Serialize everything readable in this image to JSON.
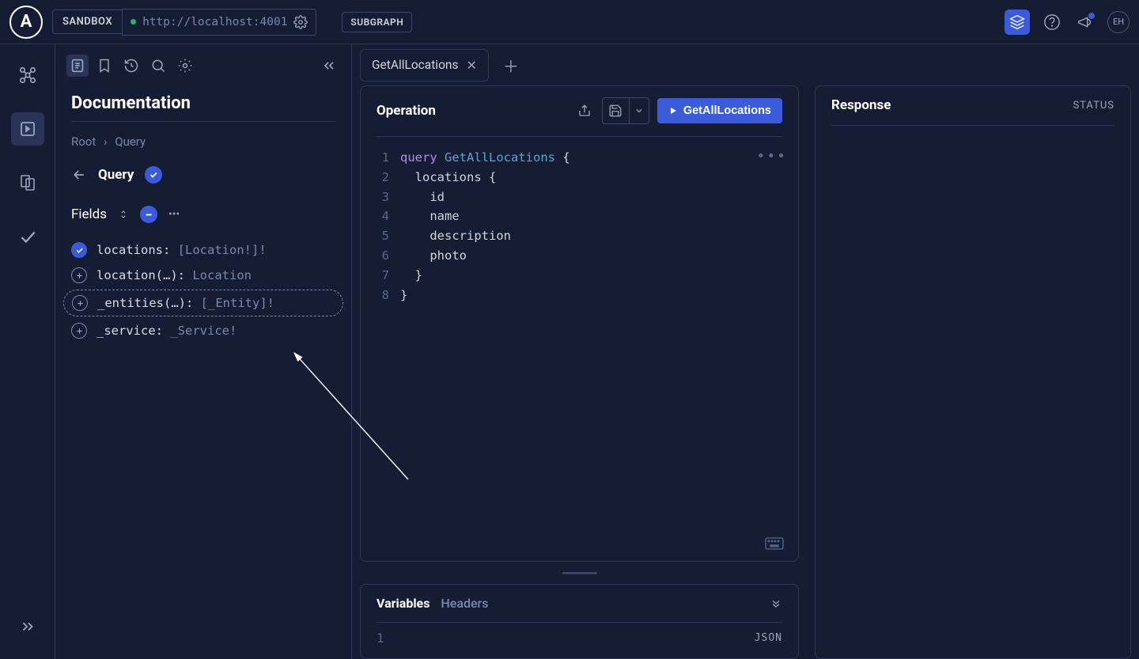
{
  "colors": {
    "bg": "#141d34",
    "panel_border": "#2d3956",
    "accent": "#3b5bdb",
    "text_muted": "#7a88ab",
    "text": "#d1d5db",
    "status_ok": "#22b573",
    "code_keyword": "#b889e6",
    "code_func": "#5ea3d0"
  },
  "topbar": {
    "logo_letter": "A",
    "sandbox_label": "SANDBOX",
    "url": "http://localhost:4001",
    "subgraph_badge": "SUBGRAPH",
    "avatar_initials": "EH"
  },
  "sidebar": {
    "title": "Documentation",
    "breadcrumb_root": "Root",
    "breadcrumb_sep": "›",
    "breadcrumb_current": "Query",
    "type_name": "Query",
    "fields_label": "Fields",
    "fields": [
      {
        "name": "locations",
        "args": "",
        "sep": ": ",
        "type": "[Location!]!",
        "checked": true,
        "highlight": false
      },
      {
        "name": "location",
        "args": "(…)",
        "sep": ": ",
        "type": "Location",
        "checked": false,
        "highlight": false
      },
      {
        "name": "_entities",
        "args": "(…)",
        "sep": ": ",
        "type": "[_Entity]!",
        "checked": false,
        "highlight": true
      },
      {
        "name": "_service",
        "args": "",
        "sep": ": ",
        "type": "_Service!",
        "checked": false,
        "highlight": false
      }
    ]
  },
  "tabs": {
    "active_label": "GetAllLocations"
  },
  "operation": {
    "title": "Operation",
    "run_label": "GetAllLocations",
    "code_lines": [
      {
        "n": "1",
        "kw": "query ",
        "fn": "GetAllLocations",
        "rest": " {"
      },
      {
        "n": "2",
        "kw": "",
        "fn": "",
        "rest": "  locations {"
      },
      {
        "n": "3",
        "kw": "",
        "fn": "",
        "rest": "    id"
      },
      {
        "n": "4",
        "kw": "",
        "fn": "",
        "rest": "    name"
      },
      {
        "n": "5",
        "kw": "",
        "fn": "",
        "rest": "    description"
      },
      {
        "n": "6",
        "kw": "",
        "fn": "",
        "rest": "    photo"
      },
      {
        "n": "7",
        "kw": "",
        "fn": "",
        "rest": "  }"
      },
      {
        "n": "8",
        "kw": "",
        "fn": "",
        "rest": "}"
      }
    ]
  },
  "variables": {
    "tab_variables": "Variables",
    "tab_headers": "Headers",
    "line_number": "1",
    "json_label": "JSON"
  },
  "response": {
    "title": "Response",
    "status_label": "STATUS"
  }
}
